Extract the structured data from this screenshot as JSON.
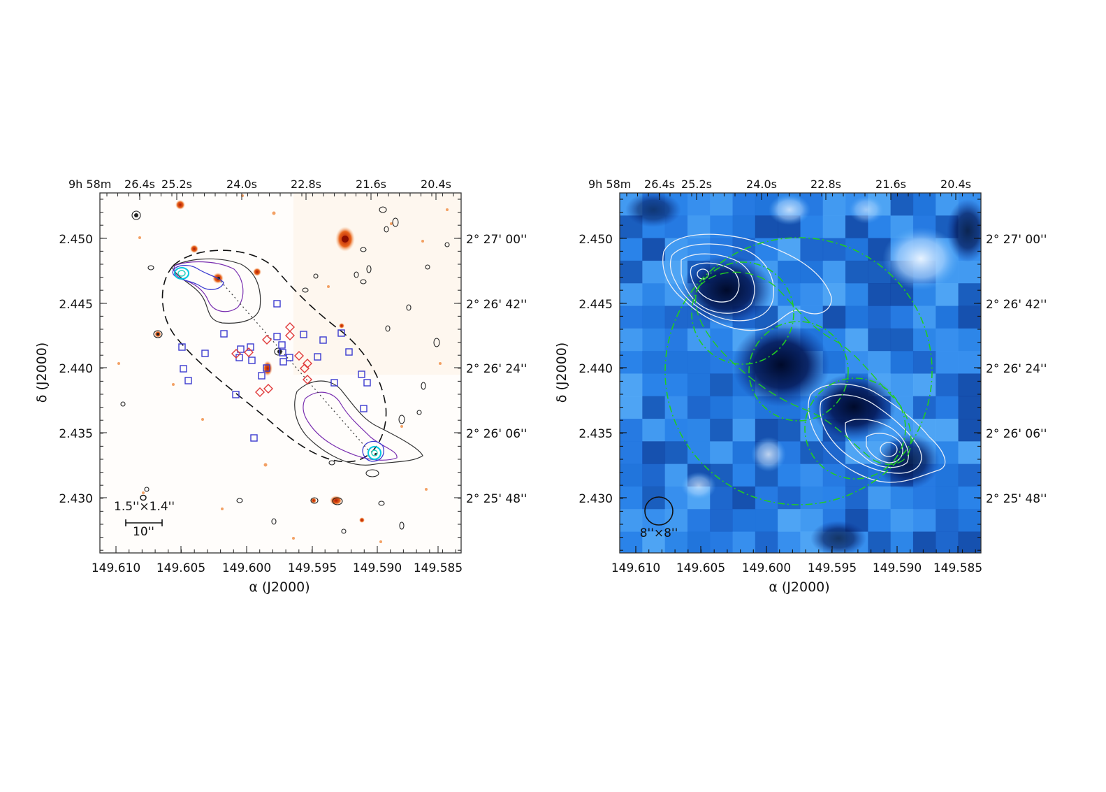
{
  "left_panel": {
    "top_axis": {
      "prefix": "9h  58m",
      "labels": [
        "26.4s",
        "25.2s",
        "24.0s",
        "22.8s",
        "21.6s",
        "20.4s"
      ]
    },
    "right_axis": {
      "labels": [
        "2° 27' 00''",
        "2° 26' 42''",
        "2° 26' 24''",
        "2° 26' 06''",
        "2° 25' 48''"
      ]
    },
    "x_ticks": [
      "149.610",
      "149.605",
      "149.600",
      "149.595",
      "149.590",
      "149.585"
    ],
    "y_ticks": [
      "2.450",
      "2.445",
      "2.440",
      "2.435",
      "2.430"
    ],
    "xlabel": "α  (J2000)",
    "ylabel": "δ  (J2000)",
    "beam_label": "1.5''×1.4''",
    "scale_label": "10''"
  },
  "right_panel": {
    "top_axis": {
      "prefix": "9h  58m",
      "labels": [
        "26.4s",
        "25.2s",
        "24.0s",
        "22.8s",
        "21.6s",
        "20.4s"
      ]
    },
    "right_axis": {
      "labels": [
        "2° 27' 00''",
        "2° 26' 42''",
        "2° 26' 24''",
        "2° 26' 06''",
        "2° 25' 48''"
      ]
    },
    "x_ticks": [
      "149.610",
      "149.605",
      "149.600",
      "149.595",
      "149.590",
      "149.585"
    ],
    "y_ticks": [
      "2.450",
      "2.445",
      "2.440",
      "2.435",
      "2.430"
    ],
    "xlabel": "α  (J2000)",
    "ylabel": "δ  (J2000)",
    "beam_label": "8''×8''"
  },
  "colors": {
    "blue_square": "#3b3bd0",
    "red_diamond": "#e03a3a",
    "purple_contour": "#7a2fb0",
    "cyan_contour": "#00c8e0",
    "green_ring": "#22cc22",
    "blue_map_light": "#5aaef8",
    "blue_map_dark": "#0a2a8a"
  }
}
